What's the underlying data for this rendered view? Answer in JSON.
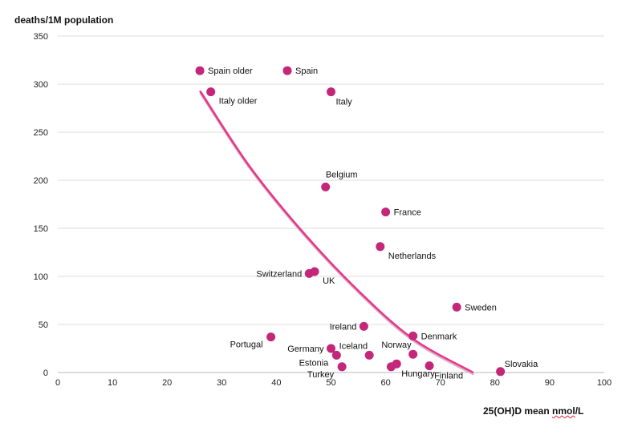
{
  "chart_data": {
    "type": "scatter",
    "title": "",
    "ylabel": "deaths/1M population",
    "xlabel_parts": [
      "25(OH)D mean ",
      "nmol",
      "/L"
    ],
    "xlim": [
      0,
      100
    ],
    "ylim": [
      0,
      350
    ],
    "xticks": [
      0,
      10,
      20,
      30,
      40,
      50,
      60,
      70,
      80,
      90,
      100
    ],
    "yticks": [
      0,
      50,
      100,
      150,
      200,
      250,
      300,
      350
    ],
    "grid": "horizontal",
    "point_color": "#c4267a",
    "trend_color": "#e8358a",
    "trend_curve": {
      "x": [
        26,
        35,
        45,
        55,
        65,
        76
      ],
      "y": [
        293,
        215,
        145,
        85,
        35,
        0
      ]
    },
    "points": [
      {
        "label": "Spain older",
        "x": 26,
        "y": 314,
        "anchor": "right"
      },
      {
        "label": "Spain",
        "x": 42,
        "y": 314,
        "anchor": "right"
      },
      {
        "label": "Italy older",
        "x": 28,
        "y": 292,
        "anchor": "below-right"
      },
      {
        "label": "Italy",
        "x": 50,
        "y": 292,
        "anchor": "below"
      },
      {
        "label": "Belgium",
        "x": 49,
        "y": 193,
        "anchor": "above"
      },
      {
        "label": "France",
        "x": 60,
        "y": 167,
        "anchor": "right"
      },
      {
        "label": "Netherlands",
        "x": 59,
        "y": 131,
        "anchor": "below-right"
      },
      {
        "label": "Switzerland",
        "x": 46,
        "y": 103,
        "anchor": "left"
      },
      {
        "label": "UK",
        "x": 47,
        "y": 105,
        "anchor": "below-right"
      },
      {
        "label": "Sweden",
        "x": 73,
        "y": 68,
        "anchor": "right"
      },
      {
        "label": "Ireland",
        "x": 56,
        "y": 48,
        "anchor": "left"
      },
      {
        "label": "Denmark",
        "x": 65,
        "y": 38,
        "anchor": "right"
      },
      {
        "label": "Portugal",
        "x": 39,
        "y": 37,
        "anchor": "below-left"
      },
      {
        "label": "Norway",
        "x": 65,
        "y": 19,
        "anchor": "above-left"
      },
      {
        "label": "Germany",
        "x": 50,
        "y": 25,
        "anchor": "left"
      },
      {
        "label": "Iceland",
        "x": 57,
        "y": 18,
        "anchor": "above-left"
      },
      {
        "label": "Estonia",
        "x": 51,
        "y": 18,
        "anchor": "below-left"
      },
      {
        "label": "Turkey",
        "x": 52,
        "y": 6,
        "anchor": "below-left"
      },
      {
        "label": "Hungary",
        "x": 62,
        "y": 9,
        "anchor": "below"
      },
      {
        "label": "Hungary",
        "x": 61,
        "y": 6,
        "anchor": "none"
      },
      {
        "label": "Finland",
        "x": 68,
        "y": 7,
        "anchor": "below"
      },
      {
        "label": "Slovakia",
        "x": 81,
        "y": 1,
        "anchor": "above-right"
      }
    ]
  }
}
